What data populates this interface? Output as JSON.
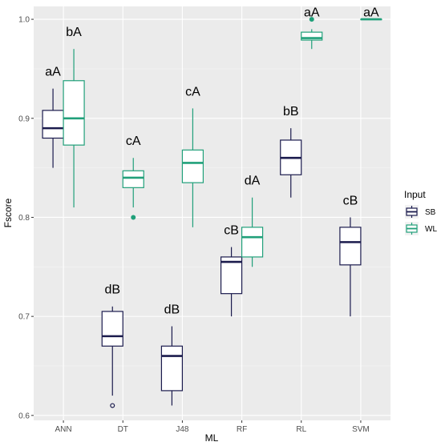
{
  "chart_data": {
    "type": "boxplot",
    "xlabel": "ML",
    "ylabel": "Fscore",
    "ylim": [
      0.595,
      1.013
    ],
    "yticks": [
      0.6,
      0.7,
      0.8,
      0.9,
      1.0
    ],
    "ytick_labels": [
      "0.6",
      "0.7",
      "0.8",
      "0.9",
      "1.0"
    ],
    "categories": [
      "ANN",
      "DT",
      "J48",
      "RF",
      "RL",
      "SVM"
    ],
    "grid": true,
    "legend": {
      "title": "Input",
      "position": "right"
    },
    "series": [
      {
        "name": "SB",
        "color": "#1b1b4d",
        "boxes": [
          {
            "whisker_low": 0.85,
            "q1": 0.88,
            "median": 0.89,
            "q3": 0.908,
            "whisker_high": 0.93,
            "outliers": []
          },
          {
            "whisker_low": 0.62,
            "q1": 0.67,
            "median": 0.68,
            "q3": 0.705,
            "whisker_high": 0.71,
            "outliers": [
              0.61
            ]
          },
          {
            "whisker_low": 0.61,
            "q1": 0.625,
            "median": 0.66,
            "q3": 0.67,
            "whisker_high": 0.69,
            "outliers": []
          },
          {
            "whisker_low": 0.7,
            "q1": 0.723,
            "median": 0.755,
            "q3": 0.76,
            "whisker_high": 0.77,
            "outliers": []
          },
          {
            "whisker_low": 0.82,
            "q1": 0.843,
            "median": 0.86,
            "q3": 0.878,
            "whisker_high": 0.89,
            "outliers": []
          },
          {
            "whisker_low": 0.7,
            "q1": 0.752,
            "median": 0.775,
            "q3": 0.79,
            "whisker_high": 0.8,
            "outliers": []
          }
        ]
      },
      {
        "name": "WL",
        "color": "#21a07a",
        "boxes": [
          {
            "whisker_low": 0.81,
            "q1": 0.873,
            "median": 0.9,
            "q3": 0.938,
            "whisker_high": 0.97,
            "outliers": []
          },
          {
            "whisker_low": 0.81,
            "q1": 0.83,
            "median": 0.84,
            "q3": 0.847,
            "whisker_high": 0.86,
            "outliers": [
              0.8
            ]
          },
          {
            "whisker_low": 0.79,
            "q1": 0.835,
            "median": 0.855,
            "q3": 0.868,
            "whisker_high": 0.91,
            "outliers": []
          },
          {
            "whisker_low": 0.75,
            "q1": 0.76,
            "median": 0.78,
            "q3": 0.79,
            "whisker_high": 0.82,
            "outliers": []
          },
          {
            "whisker_low": 0.97,
            "q1": 0.979,
            "median": 0.981,
            "q3": 0.987,
            "whisker_high": 0.99,
            "outliers": [
              1.0
            ]
          },
          {
            "whisker_low": 1.0,
            "q1": 1.0,
            "median": 1.0,
            "q3": 1.0,
            "whisker_high": 1.0,
            "outliers": []
          }
        ]
      }
    ],
    "annotations": [
      {
        "category": "ANN",
        "series": "SB",
        "text": "aA",
        "y": 0.943
      },
      {
        "category": "ANN",
        "series": "WL",
        "text": "bA",
        "y": 0.983
      },
      {
        "category": "DT",
        "series": "SB",
        "text": "dB",
        "y": 0.723
      },
      {
        "category": "DT",
        "series": "WL",
        "text": "cA",
        "y": 0.873
      },
      {
        "category": "J48",
        "series": "SB",
        "text": "dB",
        "y": 0.703
      },
      {
        "category": "J48",
        "series": "WL",
        "text": "cA",
        "y": 0.923
      },
      {
        "category": "RF",
        "series": "SB",
        "text": "cB",
        "y": 0.783
      },
      {
        "category": "RF",
        "series": "WL",
        "text": "dA",
        "y": 0.833
      },
      {
        "category": "RL",
        "series": "SB",
        "text": "bB",
        "y": 0.903
      },
      {
        "category": "RL",
        "series": "WL",
        "text": "aA",
        "y": 1.003
      },
      {
        "category": "SVM",
        "series": "SB",
        "text": "cB",
        "y": 0.813
      },
      {
        "category": "SVM",
        "series": "WL",
        "text": "aA",
        "y": 1.003
      }
    ],
    "colors": {
      "panel": "#ebebeb",
      "grid_major": "#ffffff",
      "grid_minor": "#f5f5f5",
      "tick": "#333333"
    }
  }
}
